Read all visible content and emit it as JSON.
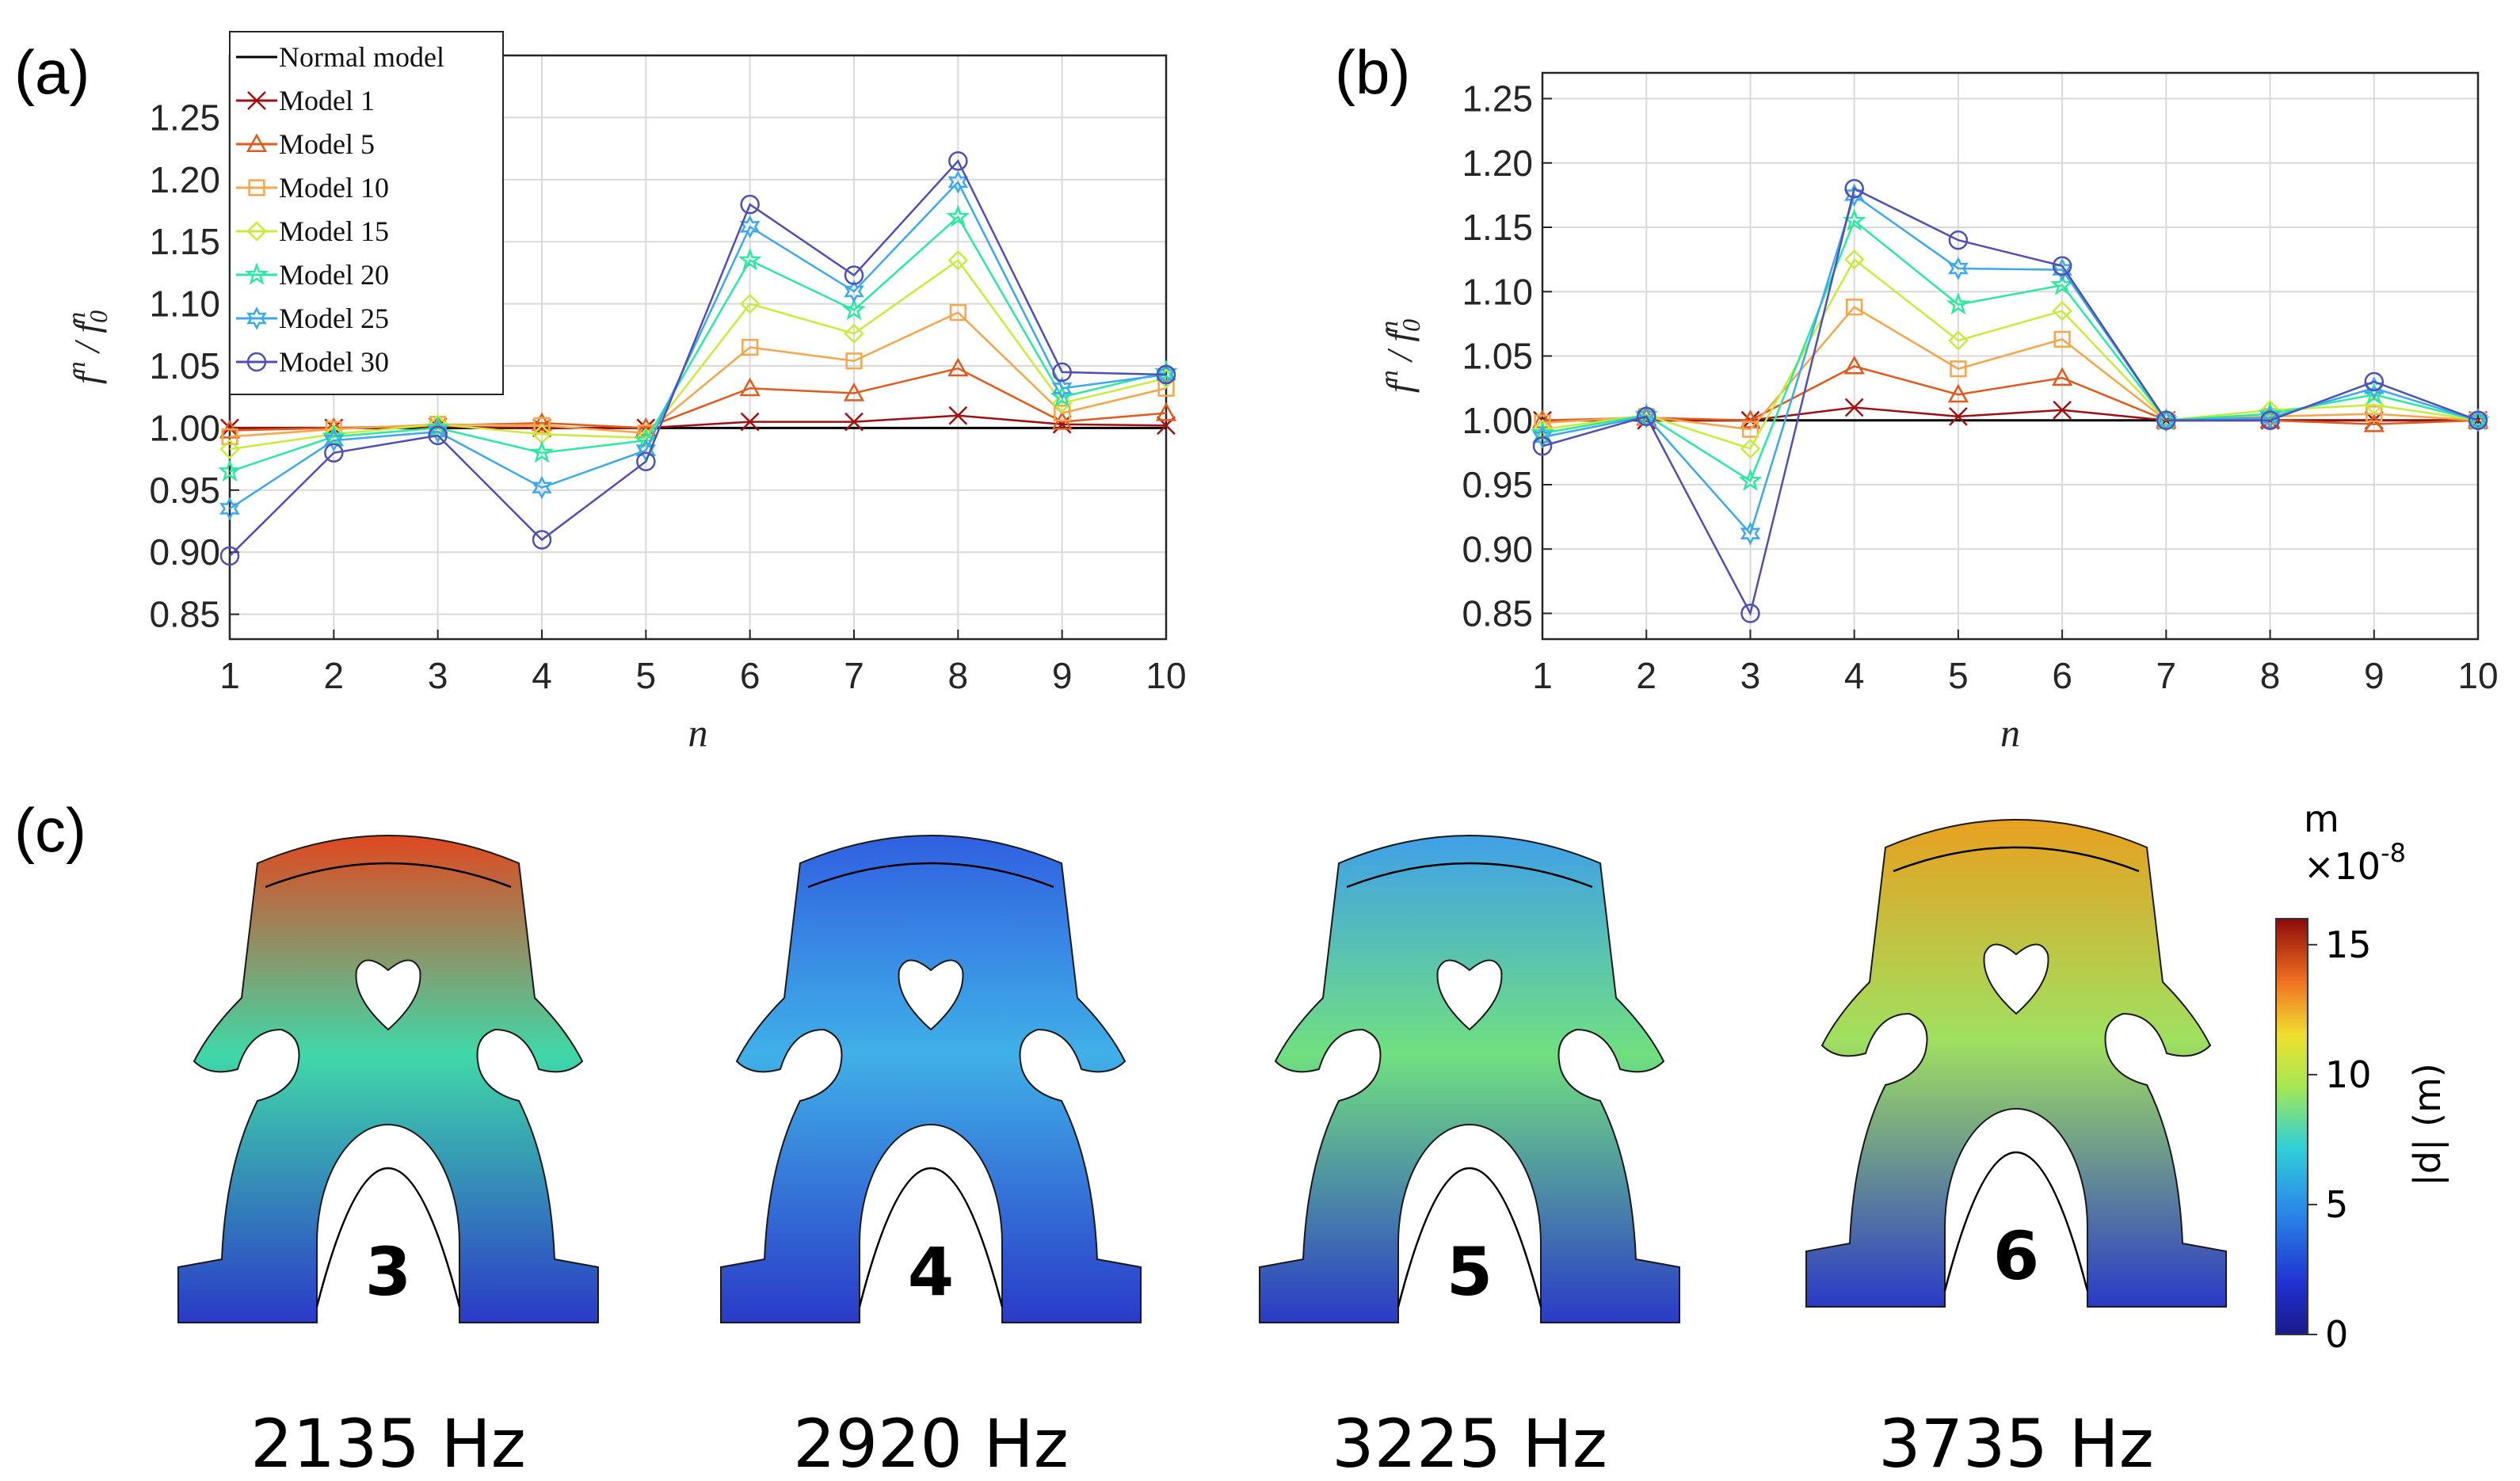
{
  "chart_data": [
    {
      "type": "line",
      "panel": "(a)",
      "x": [
        1,
        2,
        3,
        4,
        5,
        6,
        7,
        8,
        9,
        10
      ],
      "xlabel": "n",
      "ylabel": "f^n / f_0^n",
      "ylim": [
        0.83,
        1.3
      ],
      "xlim": [
        1,
        10
      ],
      "yticks": [
        "0.85",
        "0.90",
        "0.95",
        "1.00",
        "1.05",
        "1.10",
        "1.15",
        "1.20",
        "1.25"
      ],
      "xticks": [
        "1",
        "2",
        "3",
        "4",
        "5",
        "6",
        "7",
        "8",
        "9",
        "10"
      ],
      "grid": true,
      "legend": "top-left",
      "series": [
        {
          "name": "Normal model",
          "color": "#000000",
          "marker": "none",
          "values": [
            1.0,
            1.0,
            1.0,
            1.0,
            1.0,
            1.0,
            1.0,
            1.0,
            1.0,
            1.0
          ]
        },
        {
          "name": "Model 1",
          "color": "#a01010",
          "marker": "x",
          "values": [
            1.0,
            1.0,
            1.001,
            1.0,
            1.0,
            1.005,
            1.005,
            1.01,
            1.003,
            1.002
          ]
        },
        {
          "name": "Model 5",
          "color": "#e05a1e",
          "marker": "triangle",
          "values": [
            0.998,
            1.0,
            1.002,
            1.004,
            1.0,
            1.032,
            1.028,
            1.048,
            1.005,
            1.012
          ]
        },
        {
          "name": "Model 10",
          "color": "#f5a54a",
          "marker": "square",
          "values": [
            0.993,
            0.999,
            1.003,
            1.002,
            0.996,
            1.065,
            1.054,
            1.093,
            1.012,
            1.032
          ]
        },
        {
          "name": "Model 15",
          "color": "#c8ec3c",
          "marker": "diamond",
          "values": [
            0.983,
            0.995,
            1.003,
            0.995,
            0.992,
            1.1,
            1.076,
            1.135,
            1.02,
            1.04
          ]
        },
        {
          "name": "Model 20",
          "color": "#2ce8a0",
          "marker": "star",
          "values": [
            0.965,
            0.993,
            1.0,
            0.98,
            0.99,
            1.135,
            1.095,
            1.17,
            1.025,
            1.045
          ]
        },
        {
          "name": "Model 25",
          "color": "#3ca8ee",
          "marker": "hexagram",
          "values": [
            0.935,
            0.99,
            0.997,
            0.952,
            0.982,
            1.162,
            1.11,
            1.198,
            1.032,
            1.043
          ]
        },
        {
          "name": "Model 30",
          "color": "#5050b4",
          "marker": "circle",
          "values": [
            0.897,
            0.98,
            0.994,
            0.91,
            0.973,
            1.18,
            1.123,
            1.215,
            1.045,
            1.043
          ]
        }
      ]
    },
    {
      "type": "line",
      "panel": "(b)",
      "x": [
        1,
        2,
        3,
        4,
        5,
        6,
        7,
        8,
        9,
        10
      ],
      "xlabel": "n",
      "ylabel": "f^n / f_0^n",
      "ylim": [
        0.83,
        1.27
      ],
      "xlim": [
        1,
        10
      ],
      "yticks": [
        "0.85",
        "0.90",
        "0.95",
        "1.00",
        "1.05",
        "1.10",
        "1.15",
        "1.20",
        "1.25"
      ],
      "xticks": [
        "1",
        "2",
        "3",
        "4",
        "5",
        "6",
        "7",
        "8",
        "9",
        "10"
      ],
      "grid": true,
      "series": [
        {
          "name": "Normal model",
          "color": "#000000",
          "marker": "none",
          "values": [
            1.0,
            1.0,
            1.0,
            1.0,
            1.0,
            1.0,
            1.0,
            1.0,
            1.0,
            1.0
          ]
        },
        {
          "name": "Model 1",
          "color": "#a01010",
          "marker": "x",
          "values": [
            1.0,
            1.0,
            1.0,
            1.01,
            1.003,
            1.008,
            1.0,
            1.0,
            1.0,
            1.0
          ]
        },
        {
          "name": "Model 5",
          "color": "#e05a1e",
          "marker": "triangle",
          "values": [
            1.0,
            1.002,
            1.0,
            1.042,
            1.02,
            1.033,
            1.0,
            1.0,
            0.997,
            1.0
          ]
        },
        {
          "name": "Model 10",
          "color": "#f5a54a",
          "marker": "square",
          "values": [
            0.998,
            1.003,
            0.993,
            1.088,
            1.04,
            1.063,
            1.0,
            1.003,
            1.005,
            1.0
          ]
        },
        {
          "name": "Model 15",
          "color": "#c8ec3c",
          "marker": "diamond",
          "values": [
            0.993,
            1.004,
            0.978,
            1.125,
            1.062,
            1.085,
            1.0,
            1.008,
            1.012,
            1.0
          ]
        },
        {
          "name": "Model 20",
          "color": "#2ce8a0",
          "marker": "star",
          "values": [
            0.99,
            1.004,
            0.953,
            1.155,
            1.09,
            1.105,
            1.0,
            1.005,
            1.02,
            1.0
          ]
        },
        {
          "name": "Model 25",
          "color": "#3ca8ee",
          "marker": "hexagram",
          "values": [
            0.987,
            1.003,
            0.912,
            1.175,
            1.118,
            1.117,
            1.0,
            1.002,
            1.025,
            1.0
          ]
        },
        {
          "name": "Model 30",
          "color": "#5050b4",
          "marker": "circle",
          "values": [
            0.98,
            1.003,
            0.85,
            1.18,
            1.14,
            1.12,
            1.0,
            1.0,
            1.03,
            1.0
          ]
        }
      ]
    }
  ],
  "panel_c": {
    "label": "(c)",
    "modes": [
      {
        "number": "3",
        "freq": "2135 Hz",
        "colors": {
          "top": "#e04820",
          "mid": "#40d8a8",
          "bottom": "#2a3ac8"
        }
      },
      {
        "number": "4",
        "freq": "2920 Hz",
        "colors": {
          "top": "#3060e0",
          "mid": "#40b0e8",
          "bottom": "#2a3ac8"
        }
      },
      {
        "number": "5",
        "freq": "3225 Hz",
        "colors": {
          "top": "#40a0e8",
          "mid": "#70e080",
          "bottom": "#2a3ac8"
        }
      },
      {
        "number": "6",
        "freq": "3735 Hz",
        "colors": {
          "top": "#e8a020",
          "mid": "#a0e060",
          "bottom": "#2a3ac8"
        }
      }
    ],
    "colorbar": {
      "unit": "m",
      "scale": "×10",
      "exponent": "-8",
      "label": "|d| (m)",
      "min": 0,
      "max": 16,
      "ticks": [
        "0",
        "5",
        "10",
        "15"
      ]
    }
  }
}
